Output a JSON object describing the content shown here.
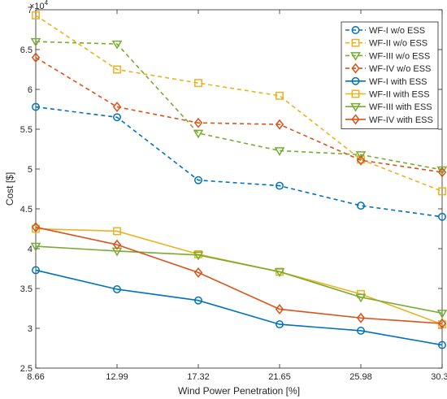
{
  "chart_data": {
    "type": "line",
    "xlabel": "Wind Power Penetration [%]",
    "ylabel": "Cost [$]",
    "y_exponent_label": "×10⁴",
    "y_exponent_base": "×10",
    "y_exponent_power": "4",
    "x": [
      8.66,
      12.99,
      17.32,
      21.65,
      25.98,
      30.31
    ],
    "x_tick_labels": [
      "8.66",
      "12.99",
      "17.32",
      "21.65",
      "25.98",
      "30.31"
    ],
    "xlim": [
      8.66,
      30.31
    ],
    "ylim": [
      2.5,
      7
    ],
    "y_ticks": [
      2.5,
      3,
      3.5,
      4,
      4.5,
      5,
      5.5,
      6,
      6.5,
      7
    ],
    "y_tick_labels": [
      "2.5",
      "3",
      "3.5",
      "4",
      "4.5",
      "5",
      "5.5",
      "6",
      "6.5",
      "7"
    ],
    "y_unit_multiplier": 10000,
    "grid": false,
    "legend_position": "top-right",
    "series": [
      {
        "name": "WF-I w/o ESS",
        "color": "#0072BD",
        "marker": "circle",
        "dash": true,
        "values": [
          5.78,
          5.65,
          4.86,
          4.79,
          4.54,
          4.4
        ]
      },
      {
        "name": "WF-II w/o ESS",
        "color": "#EDB120",
        "marker": "square",
        "dash": true,
        "values": [
          6.93,
          6.25,
          6.08,
          5.92,
          5.12,
          4.72
        ]
      },
      {
        "name": "WF-III w/o ESS",
        "color": "#77AC30",
        "marker": "triangle",
        "dash": true,
        "values": [
          6.6,
          6.57,
          5.45,
          5.23,
          5.18,
          4.99
        ]
      },
      {
        "name": "WF-IV w/o ESS",
        "color": "#D95319",
        "marker": "diamond",
        "dash": true,
        "values": [
          6.4,
          5.78,
          5.58,
          5.56,
          5.11,
          4.96
        ]
      },
      {
        "name": "WF-I with ESS",
        "color": "#0072BD",
        "marker": "circle",
        "dash": false,
        "values": [
          3.73,
          3.49,
          3.35,
          3.05,
          2.97,
          2.79
        ]
      },
      {
        "name": "WF-II with ESS",
        "color": "#EDB120",
        "marker": "square",
        "dash": false,
        "values": [
          4.25,
          4.22,
          3.93,
          3.71,
          3.43,
          3.05
        ]
      },
      {
        "name": "WF-III with ESS",
        "color": "#77AC30",
        "marker": "triangle",
        "dash": false,
        "values": [
          4.03,
          3.97,
          3.92,
          3.71,
          3.39,
          3.19
        ]
      },
      {
        "name": "WF-IV with ESS",
        "color": "#D95319",
        "marker": "diamond",
        "dash": false,
        "values": [
          4.27,
          4.05,
          3.7,
          3.24,
          3.13,
          3.06
        ]
      }
    ]
  }
}
